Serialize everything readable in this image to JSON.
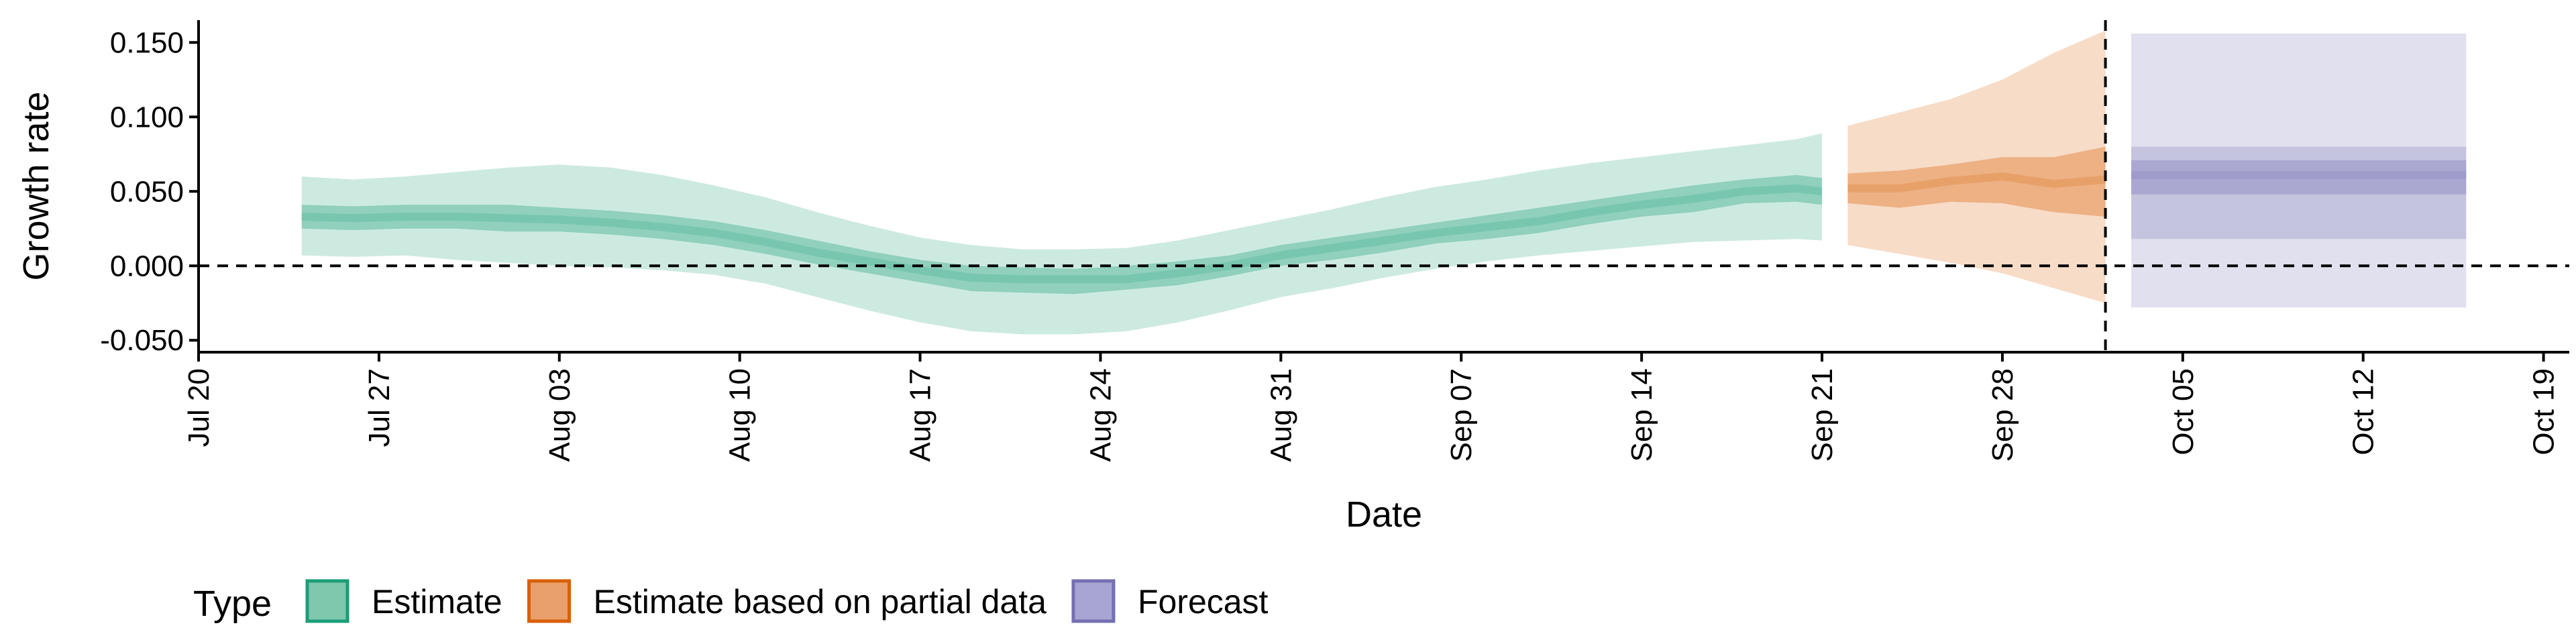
{
  "chart_data": {
    "type": "area",
    "xlabel": "Date",
    "ylabel": "Growth rate",
    "xlim": [
      "2020-07-20",
      "2020-10-20"
    ],
    "ylim": [
      -0.058,
      0.165
    ],
    "x_ticks": [
      {
        "date": "2020-07-20",
        "label": "Jul 20"
      },
      {
        "date": "2020-07-27",
        "label": "Jul 27"
      },
      {
        "date": "2020-08-03",
        "label": "Aug 03"
      },
      {
        "date": "2020-08-10",
        "label": "Aug 10"
      },
      {
        "date": "2020-08-17",
        "label": "Aug 17"
      },
      {
        "date": "2020-08-24",
        "label": "Aug 24"
      },
      {
        "date": "2020-08-31",
        "label": "Aug 31"
      },
      {
        "date": "2020-09-07",
        "label": "Sep 07"
      },
      {
        "date": "2020-09-14",
        "label": "Sep 14"
      },
      {
        "date": "2020-09-21",
        "label": "Sep 21"
      },
      {
        "date": "2020-09-28",
        "label": "Sep 28"
      },
      {
        "date": "2020-10-05",
        "label": "Oct 05"
      },
      {
        "date": "2020-10-12",
        "label": "Oct 12"
      },
      {
        "date": "2020-10-19",
        "label": "Oct 19"
      }
    ],
    "y_ticks": [
      {
        "value": 0.15,
        "label": "0.150"
      },
      {
        "value": 0.1,
        "label": "0.100"
      },
      {
        "value": 0.05,
        "label": "0.050"
      },
      {
        "value": 0.0,
        "label": "0.000"
      },
      {
        "value": -0.05,
        "label": "-0.050"
      }
    ],
    "reference_lines": [
      {
        "orientation": "horizontal",
        "value": 0.0,
        "style": "dashed"
      },
      {
        "orientation": "vertical",
        "date": "2020-10-02",
        "style": "dashed"
      }
    ],
    "grid": false,
    "legend": {
      "title": "Type",
      "position": "bottom-left",
      "entries": [
        {
          "label": "Estimate",
          "fill": "#7fc8ad",
          "stroke": "#1b9e77"
        },
        {
          "label": "Estimate based on partial data",
          "fill": "#e9a06c",
          "stroke": "#d95f02"
        },
        {
          "label": "Forecast",
          "fill": "#a9a5d2",
          "stroke": "#7570b3"
        }
      ]
    },
    "series": [
      {
        "name": "Estimate",
        "color": "#1b9e77",
        "x": [
          "2020-07-24",
          "2020-07-26",
          "2020-07-28",
          "2020-07-30",
          "2020-08-01",
          "2020-08-03",
          "2020-08-05",
          "2020-08-07",
          "2020-08-09",
          "2020-08-11",
          "2020-08-13",
          "2020-08-15",
          "2020-08-17",
          "2020-08-19",
          "2020-08-21",
          "2020-08-23",
          "2020-08-25",
          "2020-08-27",
          "2020-08-29",
          "2020-08-31",
          "2020-09-02",
          "2020-09-04",
          "2020-09-06",
          "2020-09-08",
          "2020-09-10",
          "2020-09-12",
          "2020-09-14",
          "2020-09-16",
          "2020-09-18",
          "2020-09-20",
          "2020-09-21"
        ],
        "median": [
          0.033,
          0.032,
          0.033,
          0.033,
          0.032,
          0.031,
          0.029,
          0.026,
          0.022,
          0.016,
          0.009,
          0.003,
          -0.003,
          -0.008,
          -0.009,
          -0.009,
          -0.009,
          -0.005,
          0.0,
          0.007,
          0.012,
          0.017,
          0.022,
          0.026,
          0.03,
          0.036,
          0.041,
          0.045,
          0.05,
          0.052,
          0.05
        ],
        "upper_50": [
          0.041,
          0.04,
          0.041,
          0.041,
          0.041,
          0.039,
          0.037,
          0.034,
          0.03,
          0.024,
          0.017,
          0.01,
          0.004,
          0.0,
          -0.001,
          -0.002,
          0.0,
          0.003,
          0.007,
          0.014,
          0.019,
          0.024,
          0.029,
          0.034,
          0.039,
          0.044,
          0.049,
          0.054,
          0.058,
          0.061,
          0.059
        ],
        "lower_50": [
          0.025,
          0.024,
          0.025,
          0.025,
          0.023,
          0.023,
          0.021,
          0.018,
          0.014,
          0.008,
          0.001,
          -0.005,
          -0.011,
          -0.017,
          -0.018,
          -0.019,
          -0.016,
          -0.013,
          -0.007,
          0.0,
          0.004,
          0.009,
          0.015,
          0.018,
          0.022,
          0.028,
          0.033,
          0.036,
          0.042,
          0.043,
          0.041
        ],
        "upper_90": [
          0.06,
          0.058,
          0.06,
          0.063,
          0.066,
          0.068,
          0.066,
          0.061,
          0.054,
          0.046,
          0.036,
          0.027,
          0.019,
          0.014,
          0.011,
          0.011,
          0.012,
          0.017,
          0.024,
          0.031,
          0.038,
          0.046,
          0.053,
          0.058,
          0.064,
          0.069,
          0.073,
          0.077,
          0.081,
          0.085,
          0.089
        ],
        "lower_90": [
          0.007,
          0.006,
          0.007,
          0.004,
          0.002,
          0.0,
          -0.001,
          -0.003,
          -0.006,
          -0.012,
          -0.021,
          -0.03,
          -0.038,
          -0.044,
          -0.046,
          -0.046,
          -0.044,
          -0.038,
          -0.03,
          -0.021,
          -0.015,
          -0.008,
          -0.002,
          0.003,
          0.007,
          0.01,
          0.013,
          0.016,
          0.017,
          0.018,
          0.017
        ]
      },
      {
        "name": "Estimate based on partial data",
        "color": "#d95f02",
        "x": [
          "2020-09-22",
          "2020-09-24",
          "2020-09-26",
          "2020-09-28",
          "2020-09-30",
          "2020-10-02"
        ],
        "median": [
          0.052,
          0.052,
          0.057,
          0.06,
          0.055,
          0.058
        ],
        "upper_50": [
          0.062,
          0.064,
          0.068,
          0.073,
          0.073,
          0.08
        ],
        "lower_50": [
          0.042,
          0.039,
          0.043,
          0.042,
          0.036,
          0.033
        ],
        "upper_90": [
          0.094,
          0.103,
          0.112,
          0.125,
          0.143,
          0.158
        ],
        "lower_90": [
          0.014,
          0.008,
          0.002,
          -0.005,
          -0.015,
          -0.025
        ]
      },
      {
        "name": "Forecast",
        "color": "#7570b3",
        "x": [
          "2020-10-03",
          "2020-10-16"
        ],
        "median": [
          0.061,
          0.061
        ],
        "upper_50": [
          0.071,
          0.071
        ],
        "lower_50": [
          0.048,
          0.048
        ],
        "upper_80": [
          0.08,
          0.08
        ],
        "lower_80": [
          0.018,
          0.018
        ],
        "upper_90": [
          0.156,
          0.156
        ],
        "lower_90": [
          -0.028,
          -0.028
        ]
      }
    ]
  }
}
